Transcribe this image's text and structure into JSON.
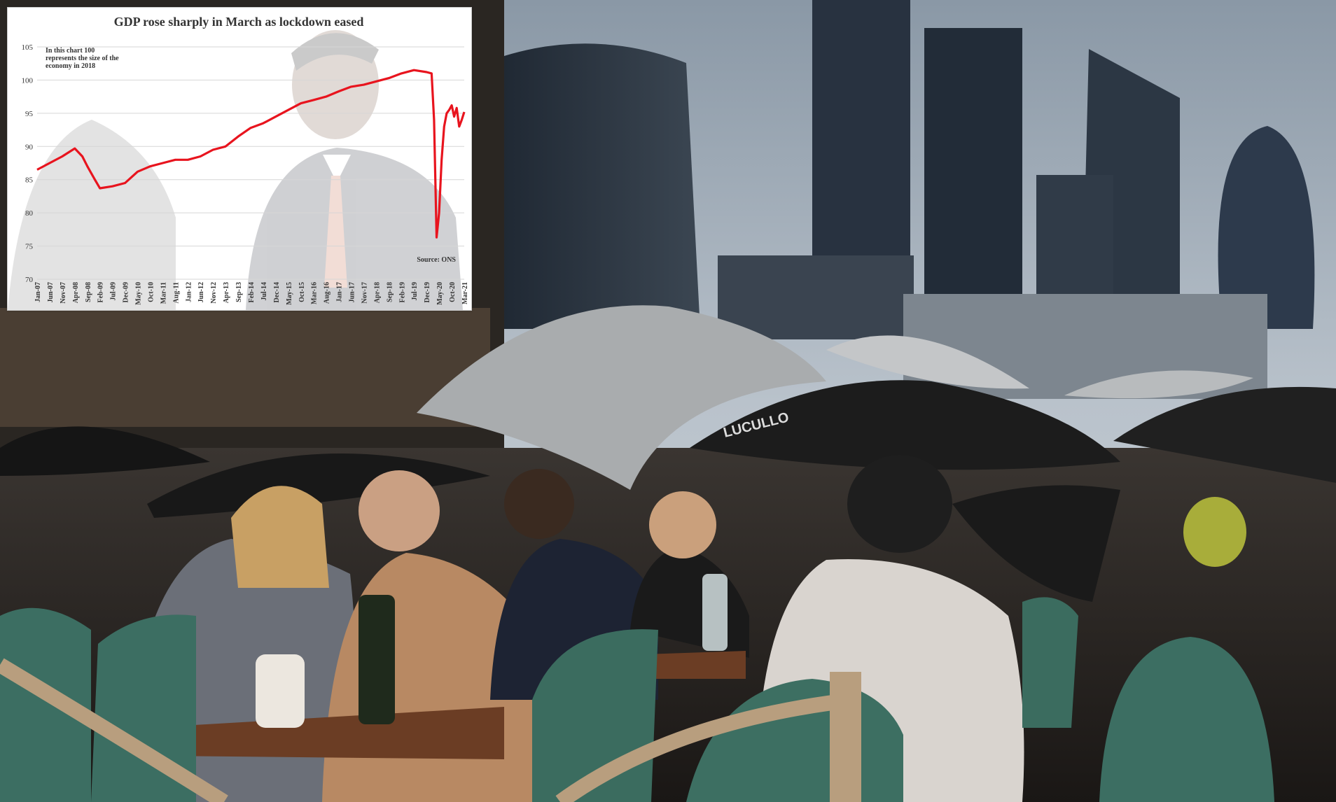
{
  "photo": {
    "umbrella_brand": "LUCULLO"
  },
  "chart_data": {
    "type": "line",
    "title": "GDP rose sharply in March as lockdown eased",
    "note": [
      "In this chart 100",
      "represents the size of the",
      "economy in 2018"
    ],
    "source": "Source: ONS",
    "ylim": [
      70,
      105
    ],
    "yticks": [
      70,
      75,
      80,
      85,
      90,
      95,
      100,
      105
    ],
    "grid": true,
    "xlabel": "",
    "ylabel": "",
    "x_tick_labels": [
      "Jan-07",
      "Jun-07",
      "Nov-07",
      "Apr-08",
      "Sep-08",
      "Feb-09",
      "Jul-09",
      "Dec-09",
      "May-10",
      "Oct-10",
      "Mar-11",
      "Aug-11",
      "Jan-12",
      "Jun-12",
      "Nov-12",
      "Apr-13",
      "Sep-13",
      "Feb-14",
      "Jul-14",
      "Dec-14",
      "May-15",
      "Oct-15",
      "Mar-16",
      "Aug-16",
      "Jan-17",
      "Jun-17",
      "Nov-17",
      "Apr-18",
      "Sep-18",
      "Feb-19",
      "Jul-19",
      "Dec-19",
      "May-20",
      "Oct-20",
      "Mar-21"
    ],
    "line_color": "#e8141e",
    "series": [
      {
        "x": [
          "Jan-07",
          "Jun-07",
          "Nov-07",
          "Apr-08",
          "Jul-08",
          "Sep-08",
          "Dec-08",
          "Feb-09",
          "Jul-09",
          "Dec-09",
          "May-10",
          "Oct-10",
          "Mar-11",
          "Aug-11",
          "Jan-12",
          "Jun-12",
          "Nov-12",
          "Apr-13",
          "Sep-13",
          "Feb-14",
          "Jul-14",
          "Dec-14",
          "May-15",
          "Oct-15",
          "Mar-16",
          "Aug-16",
          "Jan-17",
          "Jun-17",
          "Nov-17",
          "Apr-18",
          "Sep-18",
          "Feb-19",
          "Jul-19",
          "Dec-19",
          "Feb-20",
          "Mar-20",
          "Apr-20",
          "May-20",
          "Jun-20",
          "Jul-20",
          "Aug-20",
          "Sep-20",
          "Oct-20",
          "Nov-20",
          "Dec-20",
          "Jan-21",
          "Feb-21",
          "Mar-21"
        ],
        "values": [
          86.5,
          87.5,
          88.5,
          89.7,
          88.5,
          87.0,
          85.0,
          83.7,
          84.0,
          84.5,
          86.2,
          87.0,
          87.5,
          88.0,
          88.0,
          88.5,
          89.5,
          90.0,
          91.5,
          92.8,
          93.5,
          94.5,
          95.5,
          96.5,
          97.0,
          97.5,
          98.3,
          99.0,
          99.3,
          99.8,
          100.3,
          101.0,
          101.5,
          101.2,
          101.0,
          94.0,
          76.3,
          80.0,
          88.0,
          93.0,
          95.0,
          95.5,
          96.2,
          94.5,
          95.8,
          93.0,
          94.0,
          95.2
        ]
      }
    ]
  }
}
